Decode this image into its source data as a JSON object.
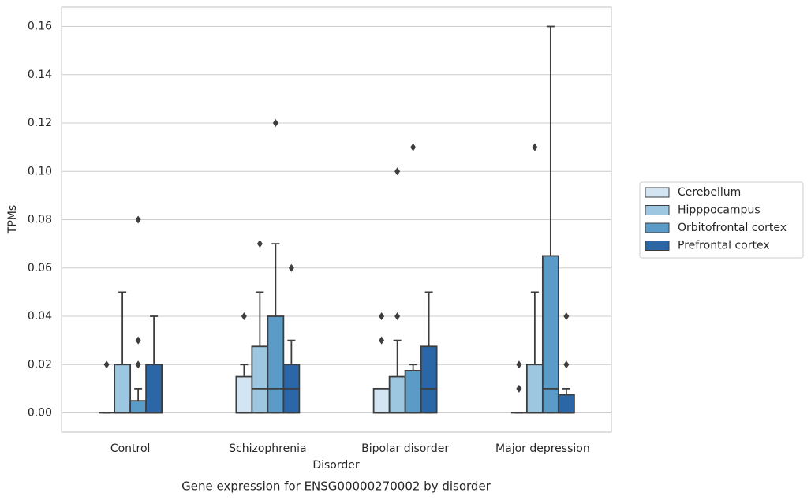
{
  "chart_data": {
    "type": "box",
    "title": "Gene expression for ENSG00000270002 by disorder",
    "xlabel": "Disorder",
    "ylabel": "TPMs",
    "categories": [
      "Control",
      "Schizophrenia",
      "Bipolar disorder",
      "Major depression"
    ],
    "ylim": [
      -0.008,
      0.168
    ],
    "yticks": [
      {
        "value": 0,
        "label": "0.00"
      },
      {
        "value": 0.02,
        "label": "0.02"
      },
      {
        "value": 0.04,
        "label": "0.04"
      },
      {
        "value": 0.06,
        "label": "0.06"
      },
      {
        "value": 0.08,
        "label": "0.08"
      },
      {
        "value": 0.1,
        "label": "0.10"
      },
      {
        "value": 0.12,
        "label": "0.12"
      },
      {
        "value": 0.14,
        "label": "0.14"
      },
      {
        "value": 0.16,
        "label": "0.16"
      }
    ],
    "grid": true,
    "legend": "right",
    "series": [
      {
        "name": "Cerebellum",
        "color": "#d3e4f3",
        "boxes": [
          {
            "min": 0,
            "q1": 0,
            "median": 0,
            "q3": 0,
            "max": 0,
            "outliers": [
              0.02
            ]
          },
          {
            "min": 0,
            "q1": 0,
            "median": 0,
            "q3": 0.015,
            "max": 0.02,
            "outliers": [
              0.04
            ]
          },
          {
            "min": 0,
            "q1": 0,
            "median": 0,
            "q3": 0.01,
            "max": 0.01,
            "outliers": [
              0.03,
              0.04
            ]
          },
          {
            "min": 0,
            "q1": 0,
            "median": 0,
            "q3": 0,
            "max": 0,
            "outliers": [
              0.01,
              0.02
            ]
          }
        ]
      },
      {
        "name": "Hipppocampus",
        "color": "#9dc7e0",
        "boxes": [
          {
            "min": 0,
            "q1": 0,
            "median": 0,
            "q3": 0.02,
            "max": 0.05,
            "outliers": []
          },
          {
            "min": 0,
            "q1": 0,
            "median": 0.01,
            "q3": 0.0275,
            "max": 0.05,
            "outliers": [
              0.07
            ]
          },
          {
            "min": 0,
            "q1": 0,
            "median": 0,
            "q3": 0.015,
            "max": 0.03,
            "outliers": [
              0.04,
              0.1
            ]
          },
          {
            "min": 0,
            "q1": 0,
            "median": 0,
            "q3": 0.02,
            "max": 0.05,
            "outliers": [
              0.11
            ]
          }
        ]
      },
      {
        "name": "Orbitofrontal cortex",
        "color": "#5a9bc8",
        "boxes": [
          {
            "min": 0,
            "q1": 0,
            "median": 0,
            "q3": 0.005,
            "max": 0.01,
            "outliers": [
              0.02,
              0.03,
              0.08
            ]
          },
          {
            "min": 0,
            "q1": 0,
            "median": 0.01,
            "q3": 0.04,
            "max": 0.07,
            "outliers": [
              0.12
            ]
          },
          {
            "min": 0,
            "q1": 0,
            "median": 0,
            "q3": 0.0175,
            "max": 0.02,
            "outliers": [
              0.11
            ]
          },
          {
            "min": 0,
            "q1": 0,
            "median": 0.01,
            "q3": 0.065,
            "max": 0.16,
            "outliers": []
          }
        ]
      },
      {
        "name": "Prefrontal cortex",
        "color": "#2b67a6",
        "boxes": [
          {
            "min": 0,
            "q1": 0,
            "median": 0,
            "q3": 0.02,
            "max": 0.04,
            "outliers": []
          },
          {
            "min": 0,
            "q1": 0,
            "median": 0.01,
            "q3": 0.02,
            "max": 0.03,
            "outliers": [
              0.06
            ]
          },
          {
            "min": 0,
            "q1": 0,
            "median": 0.01,
            "q3": 0.0275,
            "max": 0.05,
            "outliers": []
          },
          {
            "min": 0,
            "q1": 0,
            "median": 0,
            "q3": 0.0075,
            "max": 0.01,
            "outliers": [
              0.02,
              0.04
            ]
          }
        ]
      }
    ]
  }
}
